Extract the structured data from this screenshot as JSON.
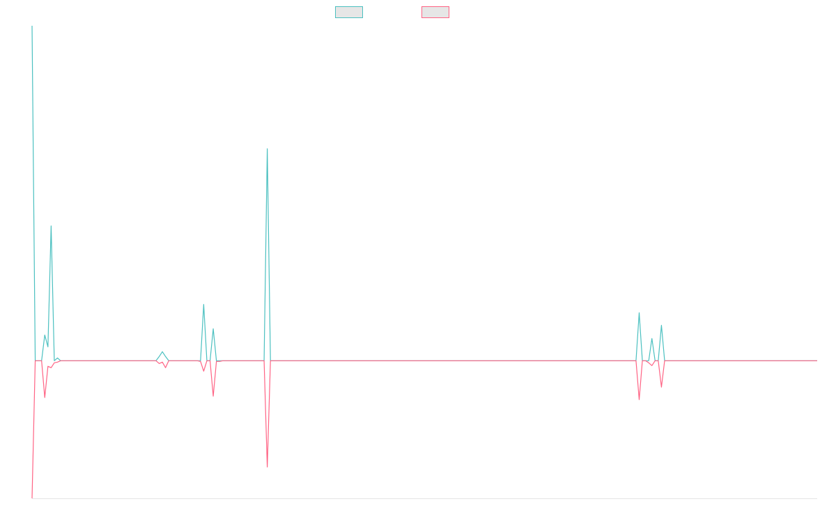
{
  "chart_data": {
    "type": "line",
    "x": [
      0,
      1,
      2,
      3,
      4,
      5,
      6,
      7,
      8,
      9,
      10,
      11,
      12,
      13,
      14,
      15,
      16,
      17,
      18,
      19,
      20,
      21,
      22,
      23,
      24,
      25,
      26,
      27,
      28,
      29,
      30,
      31,
      32,
      33,
      34,
      35,
      36,
      37,
      38,
      39,
      40,
      41,
      42,
      43,
      44,
      45,
      46,
      47,
      48,
      49,
      50,
      51,
      52,
      53,
      54,
      55,
      56,
      57,
      58,
      59,
      60,
      61,
      62,
      63,
      64,
      65,
      66,
      67,
      68,
      69,
      70,
      71,
      72,
      73,
      74,
      75,
      76,
      77,
      78,
      79,
      80,
      81,
      82,
      83,
      84,
      85,
      86,
      87,
      88,
      89,
      90,
      91,
      92,
      93,
      94,
      95,
      96,
      97,
      98,
      99,
      100,
      101,
      102,
      103,
      104,
      105,
      106,
      107,
      108,
      109,
      110,
      111,
      112,
      113,
      114,
      115,
      116,
      117,
      118,
      119,
      120,
      121,
      122,
      123,
      124,
      125,
      126,
      127,
      128,
      129,
      130,
      131,
      132,
      133,
      134,
      135,
      136,
      137,
      138,
      139,
      140,
      141,
      142,
      143,
      144,
      145,
      146,
      147,
      148,
      149,
      150,
      151,
      152,
      153,
      154,
      155,
      156,
      157,
      158,
      159,
      160,
      161,
      162,
      163,
      164,
      165,
      166,
      167,
      168,
      169,
      170,
      171,
      172,
      173,
      174,
      175,
      176,
      177,
      178,
      179,
      180,
      181,
      182,
      183,
      184,
      185,
      186,
      187,
      188,
      189,
      190,
      191,
      192,
      193,
      194,
      195,
      196,
      197,
      198,
      199,
      200,
      201,
      202,
      203,
      204,
      205,
      206,
      207,
      208,
      209,
      210,
      211,
      212,
      213,
      214,
      215,
      216,
      217,
      218,
      219,
      220,
      221,
      222,
      223,
      224,
      225,
      226,
      227,
      228,
      229,
      230,
      231,
      232,
      233,
      234,
      235,
      236,
      237,
      238,
      239,
      240,
      241,
      242,
      243,
      244,
      245,
      246,
      247
    ],
    "series": [
      {
        "color": "#4bc0c0",
        "values": [
          482,
          0,
          0,
          0,
          37,
          20,
          194,
          0,
          4,
          0,
          0,
          0,
          0,
          0,
          0,
          0,
          0,
          0,
          0,
          0,
          0,
          0,
          0,
          0,
          0,
          0,
          0,
          0,
          0,
          0,
          0,
          0,
          0,
          0,
          0,
          0,
          0,
          0,
          0,
          0,
          6,
          13,
          6,
          0,
          0,
          0,
          0,
          0,
          0,
          0,
          0,
          0,
          0,
          0,
          81,
          0,
          0,
          46,
          0,
          0,
          0,
          0,
          0,
          0,
          0,
          0,
          0,
          0,
          0,
          0,
          0,
          0,
          0,
          0,
          305,
          0,
          0,
          0,
          0,
          0,
          0,
          0,
          0,
          0,
          0,
          0,
          0,
          0,
          0,
          0,
          0,
          0,
          0,
          0,
          0,
          0,
          0,
          0,
          0,
          0,
          0,
          0,
          0,
          0,
          0,
          0,
          0,
          0,
          0,
          0,
          0,
          0,
          0,
          0,
          0,
          0,
          0,
          0,
          0,
          0,
          0,
          0,
          0,
          0,
          0,
          0,
          0,
          0,
          0,
          0,
          0,
          0,
          0,
          0,
          0,
          0,
          0,
          0,
          0,
          0,
          0,
          0,
          0,
          0,
          0,
          0,
          0,
          0,
          0,
          0,
          0,
          0,
          0,
          0,
          0,
          0,
          0,
          0,
          0,
          0,
          0,
          0,
          0,
          0,
          0,
          0,
          0,
          0,
          0,
          0,
          0,
          0,
          0,
          0,
          0,
          0,
          0,
          0,
          0,
          0,
          0,
          0,
          0,
          0,
          0,
          0,
          0,
          0,
          0,
          0,
          0,
          69,
          0,
          0,
          0,
          32,
          0,
          0,
          51,
          0,
          0,
          0,
          0,
          0,
          0,
          0,
          0,
          0,
          0,
          0,
          0,
          0,
          0,
          0,
          0,
          0,
          0,
          0,
          0,
          0,
          0,
          0,
          0,
          0,
          0,
          0,
          0,
          0,
          0,
          0,
          0,
          0,
          0,
          0,
          0,
          0,
          0,
          0,
          0,
          0,
          0,
          0,
          0,
          0,
          0,
          0,
          0,
          0
        ]
      },
      {
        "color": "#ff6384",
        "values": [
          -198,
          0,
          0,
          0,
          -53,
          -8,
          -10,
          -3,
          -2,
          0,
          0,
          0,
          0,
          0,
          0,
          0,
          0,
          0,
          0,
          0,
          0,
          0,
          0,
          0,
          0,
          0,
          0,
          0,
          0,
          0,
          0,
          0,
          0,
          0,
          0,
          0,
          0,
          0,
          0,
          0,
          -4,
          -2,
          -10,
          0,
          0,
          0,
          0,
          0,
          0,
          0,
          0,
          0,
          0,
          -1,
          -15,
          0,
          0,
          -51,
          -1,
          -1,
          0,
          0,
          0,
          0,
          0,
          0,
          0,
          0,
          0,
          0,
          0,
          0,
          0,
          0,
          -153,
          0,
          0,
          0,
          0,
          0,
          0,
          0,
          0,
          0,
          0,
          0,
          0,
          0,
          0,
          0,
          0,
          0,
          0,
          0,
          0,
          0,
          0,
          0,
          0,
          0,
          0,
          0,
          0,
          0,
          0,
          0,
          0,
          0,
          0,
          0,
          0,
          0,
          0,
          0,
          0,
          0,
          0,
          0,
          0,
          0,
          0,
          0,
          0,
          0,
          0,
          0,
          0,
          0,
          0,
          0,
          0,
          0,
          0,
          0,
          0,
          0,
          0,
          0,
          0,
          0,
          0,
          0,
          0,
          0,
          0,
          0,
          0,
          0,
          0,
          0,
          0,
          0,
          0,
          0,
          0,
          0,
          0,
          0,
          0,
          0,
          0,
          0,
          0,
          0,
          0,
          0,
          0,
          0,
          0,
          0,
          0,
          0,
          0,
          0,
          0,
          0,
          0,
          0,
          0,
          0,
          0,
          0,
          0,
          0,
          0,
          0,
          0,
          0,
          0,
          0,
          0,
          -56,
          0,
          0,
          -3,
          -7,
          0,
          0,
          -38,
          0,
          0,
          0,
          0,
          0,
          0,
          0,
          0,
          0,
          0,
          0,
          0,
          0,
          0,
          0,
          0,
          0,
          0,
          0,
          0,
          0,
          0,
          0,
          0,
          0,
          0,
          0,
          0,
          0,
          0,
          0,
          0,
          0,
          0,
          0,
          0,
          0,
          0,
          0,
          0,
          0,
          0,
          0,
          0,
          0,
          0,
          0,
          0,
          0
        ]
      }
    ],
    "ylim": [
      -198,
      482
    ],
    "xlim": [
      0,
      247
    ],
    "grid": false,
    "legend": {
      "position": "top-center",
      "fill": "#e6e6e6"
    }
  }
}
